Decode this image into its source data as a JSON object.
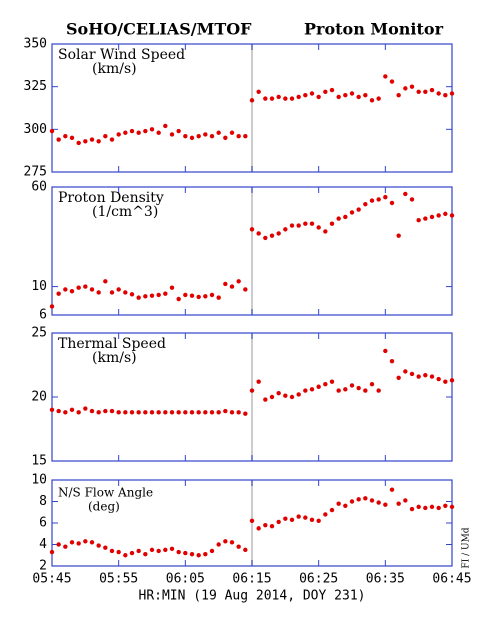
{
  "title": "SoHO/CELIAS/MTOF",
  "subtitle": "Proton Monitor",
  "credit": "FI / UMd",
  "chart_data": [
    {
      "type": "scatter",
      "label": "Solar Wind Speed",
      "unit": "(km/s)",
      "color": "#e00000",
      "divider": "06:15",
      "x": [
        "05:45",
        "05:46",
        "05:47",
        "05:48",
        "05:49",
        "05:50",
        "05:51",
        "05:52",
        "05:53",
        "05:54",
        "05:55",
        "05:56",
        "05:57",
        "05:58",
        "05:59",
        "06:00",
        "06:01",
        "06:02",
        "06:03",
        "06:04",
        "06:05",
        "06:06",
        "06:07",
        "06:08",
        "06:09",
        "06:10",
        "06:11",
        "06:12",
        "06:13",
        "06:14",
        "06:15",
        "06:16",
        "06:17",
        "06:18",
        "06:19",
        "06:20",
        "06:21",
        "06:22",
        "06:23",
        "06:24",
        "06:25",
        "06:26",
        "06:27",
        "06:28",
        "06:29",
        "06:30",
        "06:31",
        "06:32",
        "06:33",
        "06:34",
        "06:35",
        "06:36",
        "06:37",
        "06:38",
        "06:39",
        "06:40",
        "06:41",
        "06:42",
        "06:43",
        "06:44",
        "06:45"
      ],
      "values": [
        299,
        294,
        296,
        295,
        292,
        293,
        294,
        293,
        296,
        294,
        297,
        298,
        299,
        298,
        299,
        300,
        298,
        302,
        297,
        299,
        296,
        295,
        296,
        297,
        296,
        298,
        295,
        298,
        296,
        296,
        317,
        322,
        318,
        318,
        319,
        318,
        318,
        319,
        320,
        321,
        319,
        322,
        323,
        319,
        320,
        321,
        319,
        320,
        317,
        318,
        331,
        328,
        320,
        324,
        325,
        322,
        322,
        323,
        321,
        320,
        321
      ],
      "xlim": [
        "05:45",
        "06:45"
      ],
      "xticks": [
        "05:45",
        "05:55",
        "06:05",
        "06:15",
        "06:25",
        "06:35",
        "06:45"
      ],
      "ylim": [
        275,
        350
      ],
      "yticks": [
        275,
        300,
        325,
        350
      ],
      "log": false
    },
    {
      "type": "scatter",
      "label": "Proton Density",
      "unit": "(1/cm^3)",
      "color": "#e00000",
      "divider": "06:15",
      "x": [
        "05:45",
        "05:46",
        "05:47",
        "05:48",
        "05:49",
        "05:50",
        "05:51",
        "05:52",
        "05:53",
        "05:54",
        "05:55",
        "05:56",
        "05:57",
        "05:58",
        "05:59",
        "06:00",
        "06:01",
        "06:02",
        "06:03",
        "06:04",
        "06:05",
        "06:06",
        "06:07",
        "06:08",
        "06:09",
        "06:10",
        "06:11",
        "06:12",
        "06:13",
        "06:14",
        "06:15",
        "06:16",
        "06:17",
        "06:18",
        "06:19",
        "06:20",
        "06:21",
        "06:22",
        "06:23",
        "06:24",
        "06:25",
        "06:26",
        "06:27",
        "06:28",
        "06:29",
        "06:30",
        "06:31",
        "06:32",
        "06:33",
        "06:34",
        "06:35",
        "06:36",
        "06:37",
        "06:38",
        "06:39",
        "06:40",
        "06:41",
        "06:42",
        "06:43",
        "06:44",
        "06:45"
      ],
      "values": [
        7,
        8.8,
        9.5,
        9.2,
        9.8,
        10,
        9.5,
        9,
        11,
        9,
        9.5,
        9,
        8.7,
        8.2,
        8.4,
        8.5,
        8.6,
        8.8,
        9.8,
        8,
        8.6,
        8.5,
        8.3,
        8.4,
        8.6,
        8.2,
        10.5,
        10,
        11,
        9.5,
        28,
        26,
        24,
        25,
        26,
        28,
        30,
        30,
        31,
        31,
        29,
        27,
        31,
        34,
        35,
        38,
        40,
        44,
        47,
        48,
        50,
        45,
        25,
        53,
        48,
        33,
        34,
        35,
        36,
        37,
        36
      ],
      "xlim": [
        "05:45",
        "06:45"
      ],
      "xticks": [
        "05:45",
        "05:55",
        "06:05",
        "06:15",
        "06:25",
        "06:35",
        "06:45"
      ],
      "ylim": [
        6,
        60
      ],
      "yticks": [
        6,
        10,
        60
      ],
      "log": true
    },
    {
      "type": "scatter",
      "label": "Thermal Speed",
      "unit": "(km/s)",
      "color": "#e00000",
      "divider": "06:15",
      "x": [
        "05:45",
        "05:46",
        "05:47",
        "05:48",
        "05:49",
        "05:50",
        "05:51",
        "05:52",
        "05:53",
        "05:54",
        "05:55",
        "05:56",
        "05:57",
        "05:58",
        "05:59",
        "06:00",
        "06:01",
        "06:02",
        "06:03",
        "06:04",
        "06:05",
        "06:06",
        "06:07",
        "06:08",
        "06:09",
        "06:10",
        "06:11",
        "06:12",
        "06:13",
        "06:14",
        "06:15",
        "06:16",
        "06:17",
        "06:18",
        "06:19",
        "06:20",
        "06:21",
        "06:22",
        "06:23",
        "06:24",
        "06:25",
        "06:26",
        "06:27",
        "06:28",
        "06:29",
        "06:30",
        "06:31",
        "06:32",
        "06:33",
        "06:34",
        "06:35",
        "06:36",
        "06:37",
        "06:38",
        "06:39",
        "06:40",
        "06:41",
        "06:42",
        "06:43",
        "06:44",
        "06:45"
      ],
      "values": [
        19,
        18.9,
        18.8,
        19,
        18.8,
        19.1,
        18.9,
        18.8,
        18.9,
        18.9,
        18.8,
        18.8,
        18.8,
        18.8,
        18.8,
        18.8,
        18.8,
        18.8,
        18.8,
        18.8,
        18.8,
        18.8,
        18.8,
        18.8,
        18.8,
        18.8,
        18.9,
        18.8,
        18.8,
        18.7,
        20.5,
        21.2,
        19.8,
        20,
        20.3,
        20.1,
        20,
        20.2,
        20.5,
        20.6,
        20.8,
        21,
        21.2,
        20.5,
        20.6,
        20.9,
        20.7,
        20.5,
        21,
        20.5,
        23.6,
        22.8,
        21.5,
        22,
        21.8,
        21.6,
        21.7,
        21.6,
        21.4,
        21.2,
        21.3
      ],
      "xlim": [
        "05:45",
        "06:45"
      ],
      "xticks": [
        "05:45",
        "05:55",
        "06:05",
        "06:15",
        "06:25",
        "06:35",
        "06:45"
      ],
      "ylim": [
        15,
        25
      ],
      "yticks": [
        15,
        20,
        25
      ],
      "log": false
    },
    {
      "type": "scatter",
      "label": "N/S Flow Angle",
      "unit": "(deg)",
      "color": "#e00000",
      "divider": "06:15",
      "x": [
        "05:45",
        "05:46",
        "05:47",
        "05:48",
        "05:49",
        "05:50",
        "05:51",
        "05:52",
        "05:53",
        "05:54",
        "05:55",
        "05:56",
        "05:57",
        "05:58",
        "05:59",
        "06:00",
        "06:01",
        "06:02",
        "06:03",
        "06:04",
        "06:05",
        "06:06",
        "06:07",
        "06:08",
        "06:09",
        "06:10",
        "06:11",
        "06:12",
        "06:13",
        "06:14",
        "06:15",
        "06:16",
        "06:17",
        "06:18",
        "06:19",
        "06:20",
        "06:21",
        "06:22",
        "06:23",
        "06:24",
        "06:25",
        "06:26",
        "06:27",
        "06:28",
        "06:29",
        "06:30",
        "06:31",
        "06:32",
        "06:33",
        "06:34",
        "06:35",
        "06:36",
        "06:37",
        "06:38",
        "06:39",
        "06:40",
        "06:41",
        "06:42",
        "06:43",
        "06:44",
        "06:45"
      ],
      "values": [
        3.3,
        4,
        3.8,
        4.2,
        4.1,
        4.3,
        4.2,
        3.9,
        3.7,
        3.4,
        3.3,
        3,
        3.2,
        3.4,
        3.1,
        3.5,
        3.4,
        3.5,
        3.6,
        3.3,
        3.2,
        3.1,
        3,
        3.1,
        3.4,
        4,
        4.3,
        4.2,
        3.8,
        3.5,
        6.2,
        5.5,
        5.8,
        5.7,
        6.1,
        6.4,
        6.3,
        6.6,
        6.5,
        6.3,
        6.2,
        6.8,
        7.2,
        7.8,
        7.6,
        8,
        8.2,
        8.3,
        8.1,
        7.9,
        7.7,
        9.1,
        7.8,
        8.1,
        7.3,
        7.5,
        7.4,
        7.5,
        7.4,
        7.6,
        7.5
      ],
      "xlim": [
        "05:45",
        "06:45"
      ],
      "xticks": [
        "05:45",
        "05:55",
        "06:05",
        "06:15",
        "06:25",
        "06:35",
        "06:45"
      ],
      "ylim": [
        2,
        10
      ],
      "yticks": [
        2,
        4,
        6,
        8,
        10
      ],
      "log": false,
      "xlabel": "HR:MIN (19 Aug 2014, DOY 231)"
    }
  ]
}
